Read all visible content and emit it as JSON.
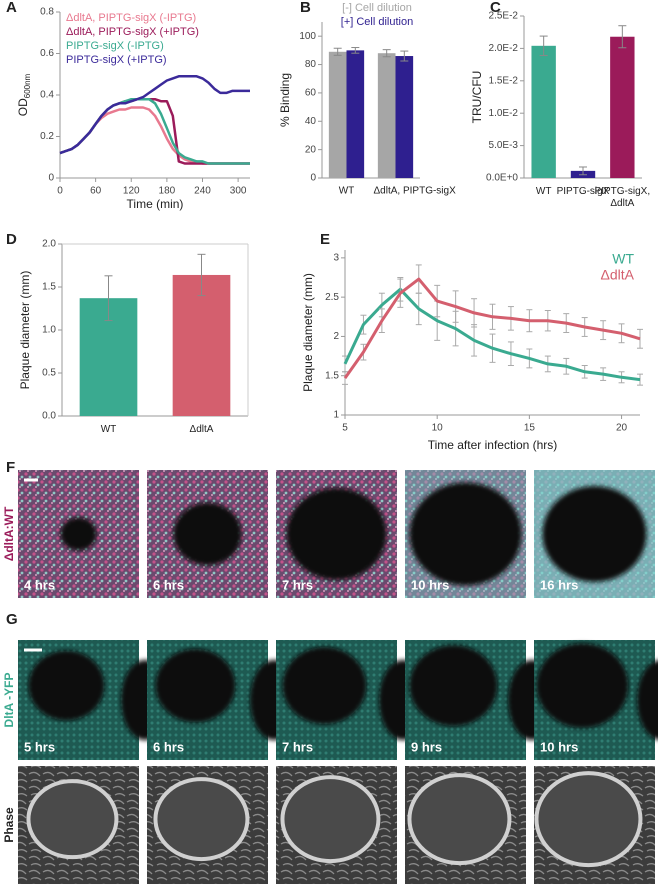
{
  "chart_data": [
    {
      "type": "line",
      "label": "A",
      "x_label": "Time (min)",
      "y_label": "OD",
      "y_label_sub": "600nm",
      "x": [
        0,
        10,
        20,
        30,
        40,
        50,
        60,
        70,
        80,
        90,
        100,
        110,
        120,
        130,
        140,
        150,
        160,
        170,
        180,
        190,
        200,
        210,
        220,
        230,
        240,
        250,
        260,
        270,
        280,
        290,
        300,
        310,
        320
      ],
      "xlim": [
        0,
        320
      ],
      "xticks": [
        0,
        60,
        120,
        180,
        240,
        300
      ],
      "ylim": [
        0,
        0.8
      ],
      "yticks": [
        0,
        0.2,
        0.4,
        0.6,
        0.8
      ],
      "series": [
        {
          "name": "ΔdltA, PIPTG-sigX (-IPTG)",
          "color": "#e8798f",
          "values": [
            0.12,
            0.13,
            0.14,
            0.16,
            0.19,
            0.22,
            0.26,
            0.29,
            0.31,
            0.32,
            0.33,
            0.33,
            0.34,
            0.34,
            0.34,
            0.33,
            0.3,
            0.25,
            0.19,
            0.14,
            0.11,
            0.09,
            0.08,
            0.08,
            0.07,
            0.07,
            0.07,
            0.07,
            0.07,
            0.07,
            0.07,
            0.07,
            0.07
          ]
        },
        {
          "name": "ΔdltA, PIPTG-sigX (+IPTG)",
          "color": "#9b1b5a",
          "values": [
            0.12,
            0.13,
            0.14,
            0.16,
            0.19,
            0.22,
            0.26,
            0.3,
            0.33,
            0.35,
            0.36,
            0.37,
            0.37,
            0.38,
            0.38,
            0.38,
            0.38,
            0.37,
            0.37,
            0.3,
            0.08,
            0.07,
            0.07,
            0.07,
            0.07,
            0.07,
            0.07,
            0.07,
            0.07,
            0.07,
            0.07,
            0.07,
            0.07
          ]
        },
        {
          "name": "PIPTG-sigX (-IPTG)",
          "color": "#3aaa90",
          "values": [
            0.12,
            0.13,
            0.14,
            0.16,
            0.19,
            0.22,
            0.26,
            0.3,
            0.33,
            0.35,
            0.36,
            0.37,
            0.38,
            0.38,
            0.38,
            0.38,
            0.36,
            0.31,
            0.24,
            0.17,
            0.12,
            0.1,
            0.09,
            0.08,
            0.08,
            0.07,
            0.07,
            0.07,
            0.07,
            0.07,
            0.07,
            0.07,
            0.07
          ]
        },
        {
          "name": "PIPTG-sigX (+IPTG)",
          "color": "#3b2a9a",
          "values": [
            0.12,
            0.13,
            0.14,
            0.16,
            0.19,
            0.22,
            0.26,
            0.3,
            0.33,
            0.35,
            0.36,
            0.36,
            0.37,
            0.38,
            0.39,
            0.41,
            0.43,
            0.45,
            0.47,
            0.48,
            0.49,
            0.49,
            0.49,
            0.49,
            0.48,
            0.46,
            0.43,
            0.41,
            0.41,
            0.42,
            0.42,
            0.42,
            0.42
          ]
        }
      ]
    },
    {
      "type": "bar",
      "label": "B",
      "y_label": "% Binding",
      "categories": [
        "WT",
        "ΔdltA, PIPTG-sigX"
      ],
      "ylim": [
        0,
        110
      ],
      "yticks": [
        0,
        20,
        40,
        60,
        80,
        100
      ],
      "series": [
        {
          "name": "[-] Cell dilution",
          "color": "#a6a6a6",
          "values": [
            89,
            88
          ],
          "errors": [
            2.5,
            2.5
          ]
        },
        {
          "name": "[+] Cell dilution",
          "color": "#2e1f8f",
          "values": [
            90,
            86
          ],
          "errors": [
            2,
            3.5
          ]
        }
      ]
    },
    {
      "type": "bar",
      "label": "C",
      "y_label": "TRU/CFU",
      "categories": [
        [
          "WT"
        ],
        [
          "PIPTG-sigX"
        ],
        [
          "PIPTG-sigX,",
          "ΔdltA"
        ]
      ],
      "ylim": [
        0,
        0.025
      ],
      "yticks": [
        {
          "value": 0,
          "label": "0.0E+0"
        },
        {
          "value": 0.005,
          "label": "5.0E-3"
        },
        {
          "value": 0.01,
          "label": "1.0E-2"
        },
        {
          "value": 0.015,
          "label": "1.5E-2"
        },
        {
          "value": 0.02,
          "label": "2.0E-2"
        },
        {
          "value": 0.025,
          "label": "2.5E-2"
        }
      ],
      "colors": [
        "#3aaa90",
        "#2e1f8f",
        "#9b1b5a"
      ],
      "values": [
        0.0204,
        0.0011,
        0.0218
      ],
      "errors": [
        0.0015,
        0.0006,
        0.0017
      ]
    },
    {
      "type": "bar",
      "label": "D",
      "y_label": "Plaque diameter (mm)",
      "categories": [
        [
          "WT"
        ],
        [
          "ΔdltA"
        ]
      ],
      "ylim": [
        0,
        2
      ],
      "yticks": [
        {
          "value": 0,
          "label": "0.0"
        },
        0.5,
        {
          "value": 1,
          "label": "1.0"
        },
        1.5,
        {
          "value": 2,
          "label": "2.0"
        }
      ],
      "colors": [
        "#3aaa90",
        "#d45f6e"
      ],
      "values": [
        1.37,
        1.64
      ],
      "errors": [
        0.26,
        0.24
      ]
    },
    {
      "type": "line",
      "label": "E",
      "x_label": "Time after infection (hrs)",
      "y_label": "Plaque diameter (mm)",
      "x": [
        5,
        6,
        7,
        8,
        9,
        10,
        11,
        12,
        13,
        14,
        15,
        16,
        17,
        18,
        19,
        20,
        21
      ],
      "xlim": [
        5,
        21
      ],
      "xticks": [
        5,
        10,
        15,
        20
      ],
      "ylim": [
        1,
        3.1
      ],
      "yticks": [
        1,
        1.5,
        2,
        2.5,
        3
      ],
      "series": [
        {
          "name": "WT",
          "color": "#3aaa90",
          "values": [
            1.65,
            2.15,
            2.4,
            2.6,
            2.35,
            2.2,
            2.1,
            1.95,
            1.85,
            1.78,
            1.72,
            1.65,
            1.62,
            1.55,
            1.52,
            1.48,
            1.45
          ],
          "errors": [
            0.1,
            0.12,
            0.15,
            0.15,
            0.2,
            0.25,
            0.22,
            0.2,
            0.18,
            0.15,
            0.12,
            0.1,
            0.1,
            0.08,
            0.08,
            0.07,
            0.07
          ]
        },
        {
          "name": "ΔdltA",
          "color": "#d45f6e",
          "values": [
            1.47,
            1.8,
            2.2,
            2.55,
            2.73,
            2.45,
            2.38,
            2.3,
            2.25,
            2.23,
            2.2,
            2.2,
            2.17,
            2.12,
            2.08,
            2.04,
            1.97
          ],
          "errors": [
            0.08,
            0.1,
            0.15,
            0.18,
            0.18,
            0.2,
            0.2,
            0.18,
            0.16,
            0.15,
            0.14,
            0.13,
            0.12,
            0.12,
            0.12,
            0.12,
            0.12
          ]
        }
      ]
    }
  ],
  "image_panels": [
    {
      "label": "F",
      "row_labels": [
        "ΔdltA:WT"
      ],
      "times": [
        "4 hrs",
        "6 hrs",
        "7 hrs",
        "10 hrs",
        "16 hrs"
      ]
    },
    {
      "label": "G",
      "row_labels": [
        "DltA -YFP",
        "Phase"
      ],
      "times": [
        "5 hrs",
        "6 hrs",
        "7 hrs",
        "9 hrs",
        "10 hrs"
      ]
    }
  ]
}
